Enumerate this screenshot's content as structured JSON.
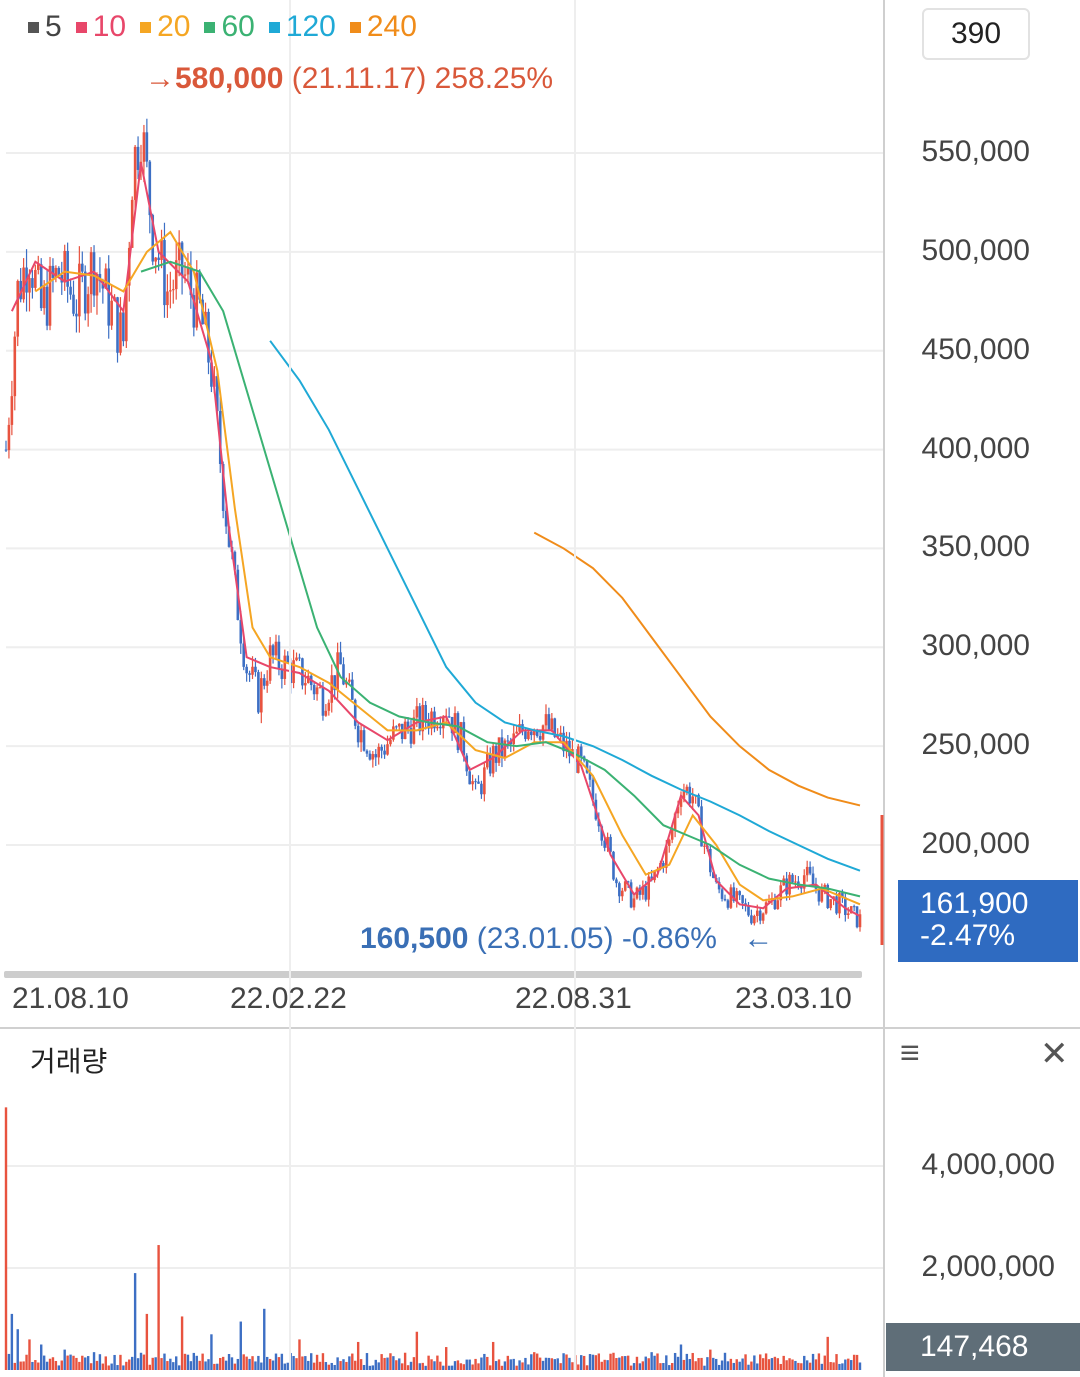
{
  "legend": [
    {
      "label": "5",
      "color": "#555555"
    },
    {
      "label": "10",
      "color": "#e8476a"
    },
    {
      "label": "20",
      "color": "#f5a623"
    },
    {
      "label": "60",
      "color": "#3bb273"
    },
    {
      "label": "120",
      "color": "#1fa9d6"
    },
    {
      "label": "240",
      "color": "#f08c1a"
    }
  ],
  "period_button": "390",
  "max_marker": {
    "arrow": "→",
    "price": "580,000",
    "date": "(21.11.17)",
    "change": "258.25%"
  },
  "min_marker": {
    "price": "160,500",
    "date": "(23.01.05)",
    "change": "-0.86%",
    "arrow": "←"
  },
  "current": {
    "price": "161,900",
    "change": "-2.47%"
  },
  "volume_panel": {
    "title": "거래량",
    "last_volume": "147,468"
  },
  "icons": {
    "menu": "menu-icon",
    "close": "close-icon"
  },
  "colors": {
    "up": "#e8533f",
    "down": "#3d6fc4",
    "grid": "#eeeeee"
  },
  "chart_data": {
    "type": "candlestick",
    "x_labels": [
      "21.08.10",
      "22.02.22",
      "22.08.31",
      "23.03.10"
    ],
    "y_ticks": [
      "550,000",
      "500,000",
      "450,000",
      "400,000",
      "350,000",
      "300,000",
      "250,000",
      "200,000"
    ],
    "y_range": [
      140000,
      590000
    ],
    "close_path": [
      [
        0,
        400000
      ],
      [
        4,
        480000
      ],
      [
        8,
        500000
      ],
      [
        12,
        470000
      ],
      [
        18,
        490000
      ],
      [
        24,
        475000
      ],
      [
        30,
        495000
      ],
      [
        36,
        470000
      ],
      [
        40,
        455000
      ],
      [
        43,
        540000
      ],
      [
        46,
        565000
      ],
      [
        50,
        510000
      ],
      [
        55,
        480000
      ],
      [
        60,
        490000
      ],
      [
        66,
        470000
      ],
      [
        70,
        440000
      ],
      [
        74,
        380000
      ],
      [
        78,
        330000
      ],
      [
        82,
        290000
      ],
      [
        86,
        275000
      ],
      [
        90,
        295000
      ],
      [
        96,
        290000
      ],
      [
        102,
        285000
      ],
      [
        108,
        275000
      ],
      [
        114,
        290000
      ],
      [
        120,
        260000
      ],
      [
        126,
        245000
      ],
      [
        132,
        255000
      ],
      [
        138,
        260000
      ],
      [
        144,
        265000
      ],
      [
        150,
        270000
      ],
      [
        156,
        250000
      ],
      [
        160,
        225000
      ],
      [
        166,
        245000
      ],
      [
        172,
        250000
      ],
      [
        178,
        262000
      ],
      [
        184,
        260000
      ],
      [
        190,
        250000
      ],
      [
        196,
        240000
      ],
      [
        202,
        215000
      ],
      [
        208,
        182000
      ],
      [
        214,
        172000
      ],
      [
        220,
        180000
      ],
      [
        226,
        200000
      ],
      [
        230,
        230000
      ],
      [
        234,
        225000
      ],
      [
        238,
        200000
      ],
      [
        242,
        178000
      ],
      [
        248,
        172000
      ],
      [
        254,
        165000
      ],
      [
        260,
        170000
      ],
      [
        266,
        180000
      ],
      [
        272,
        185000
      ],
      [
        278,
        175000
      ],
      [
        284,
        170000
      ],
      [
        288,
        165000
      ],
      [
        291,
        161900
      ]
    ],
    "moving_averages": [
      {
        "name": "5",
        "color": "#e8476a",
        "points": [
          [
            2,
            470000
          ],
          [
            10,
            495000
          ],
          [
            20,
            485000
          ],
          [
            30,
            490000
          ],
          [
            40,
            470000
          ],
          [
            46,
            545000
          ],
          [
            52,
            500000
          ],
          [
            62,
            485000
          ],
          [
            70,
            445000
          ],
          [
            76,
            360000
          ],
          [
            82,
            295000
          ],
          [
            90,
            290000
          ],
          [
            100,
            287000
          ],
          [
            110,
            278000
          ],
          [
            120,
            262000
          ],
          [
            130,
            253000
          ],
          [
            140,
            262000
          ],
          [
            150,
            265000
          ],
          [
            158,
            238000
          ],
          [
            166,
            244000
          ],
          [
            176,
            258000
          ],
          [
            186,
            258000
          ],
          [
            196,
            240000
          ],
          [
            206,
            195000
          ],
          [
            214,
            175000
          ],
          [
            222,
            185000
          ],
          [
            230,
            225000
          ],
          [
            236,
            215000
          ],
          [
            242,
            182000
          ],
          [
            250,
            170000
          ],
          [
            258,
            168000
          ],
          [
            266,
            178000
          ],
          [
            276,
            180000
          ],
          [
            286,
            168000
          ],
          [
            291,
            164000
          ]
        ]
      },
      {
        "name": "20",
        "color": "#f5a623",
        "points": [
          [
            10,
            480000
          ],
          [
            20,
            490000
          ],
          [
            30,
            488000
          ],
          [
            40,
            480000
          ],
          [
            48,
            500000
          ],
          [
            56,
            510000
          ],
          [
            64,
            490000
          ],
          [
            72,
            440000
          ],
          [
            78,
            370000
          ],
          [
            84,
            310000
          ],
          [
            90,
            295000
          ],
          [
            100,
            290000
          ],
          [
            110,
            282000
          ],
          [
            120,
            270000
          ],
          [
            130,
            258000
          ],
          [
            140,
            258000
          ],
          [
            150,
            262000
          ],
          [
            160,
            248000
          ],
          [
            170,
            244000
          ],
          [
            180,
            252000
          ],
          [
            190,
            252000
          ],
          [
            200,
            235000
          ],
          [
            210,
            205000
          ],
          [
            218,
            185000
          ],
          [
            226,
            190000
          ],
          [
            234,
            215000
          ],
          [
            242,
            200000
          ],
          [
            250,
            180000
          ],
          [
            258,
            172000
          ],
          [
            268,
            174000
          ],
          [
            278,
            178000
          ],
          [
            291,
            170000
          ]
        ]
      },
      {
        "name": "60",
        "color": "#3bb273",
        "points": [
          [
            46,
            490000
          ],
          [
            56,
            495000
          ],
          [
            66,
            490000
          ],
          [
            74,
            470000
          ],
          [
            82,
            430000
          ],
          [
            90,
            390000
          ],
          [
            98,
            350000
          ],
          [
            106,
            310000
          ],
          [
            114,
            285000
          ],
          [
            124,
            272000
          ],
          [
            134,
            265000
          ],
          [
            144,
            262000
          ],
          [
            154,
            260000
          ],
          [
            164,
            252000
          ],
          [
            174,
            250000
          ],
          [
            184,
            252000
          ],
          [
            194,
            246000
          ],
          [
            204,
            238000
          ],
          [
            214,
            225000
          ],
          [
            224,
            210000
          ],
          [
            232,
            205000
          ],
          [
            240,
            200000
          ],
          [
            250,
            190000
          ],
          [
            260,
            183000
          ],
          [
            270,
            180000
          ],
          [
            280,
            178000
          ],
          [
            291,
            174000
          ]
        ]
      },
      {
        "name": "120",
        "color": "#1fa9d6",
        "points": [
          [
            90,
            455000
          ],
          [
            100,
            435000
          ],
          [
            110,
            410000
          ],
          [
            120,
            380000
          ],
          [
            130,
            350000
          ],
          [
            140,
            320000
          ],
          [
            150,
            290000
          ],
          [
            160,
            272000
          ],
          [
            170,
            262000
          ],
          [
            180,
            258000
          ],
          [
            190,
            255000
          ],
          [
            200,
            250000
          ],
          [
            210,
            243000
          ],
          [
            220,
            235000
          ],
          [
            230,
            228000
          ],
          [
            240,
            222000
          ],
          [
            250,
            215000
          ],
          [
            260,
            207000
          ],
          [
            270,
            200000
          ],
          [
            280,
            193000
          ],
          [
            291,
            187000
          ]
        ]
      },
      {
        "name": "240",
        "color": "#f08c1a",
        "points": [
          [
            180,
            358000
          ],
          [
            190,
            350000
          ],
          [
            200,
            340000
          ],
          [
            210,
            325000
          ],
          [
            220,
            305000
          ],
          [
            230,
            285000
          ],
          [
            240,
            265000
          ],
          [
            250,
            250000
          ],
          [
            260,
            238000
          ],
          [
            270,
            230000
          ],
          [
            280,
            224000
          ],
          [
            291,
            220000
          ]
        ]
      }
    ],
    "volume": {
      "y_ticks": [
        "4,000,000",
        "2,000,000"
      ],
      "y_range": [
        0,
        5200000
      ],
      "spikes": [
        [
          0,
          5150000
        ],
        [
          2,
          1100000
        ],
        [
          4,
          800000
        ],
        [
          8,
          600000
        ],
        [
          12,
          500000
        ],
        [
          20,
          400000
        ],
        [
          30,
          350000
        ],
        [
          44,
          1900000
        ],
        [
          48,
          1100000
        ],
        [
          52,
          2450000
        ],
        [
          60,
          1050000
        ],
        [
          70,
          700000
        ],
        [
          80,
          950000
        ],
        [
          88,
          1200000
        ],
        [
          100,
          600000
        ],
        [
          120,
          550000
        ],
        [
          140,
          750000
        ],
        [
          150,
          450000
        ],
        [
          166,
          550000
        ],
        [
          180,
          350000
        ],
        [
          200,
          300000
        ],
        [
          220,
          350000
        ],
        [
          230,
          500000
        ],
        [
          240,
          400000
        ],
        [
          280,
          650000
        ],
        [
          291,
          147468
        ]
      ]
    }
  }
}
